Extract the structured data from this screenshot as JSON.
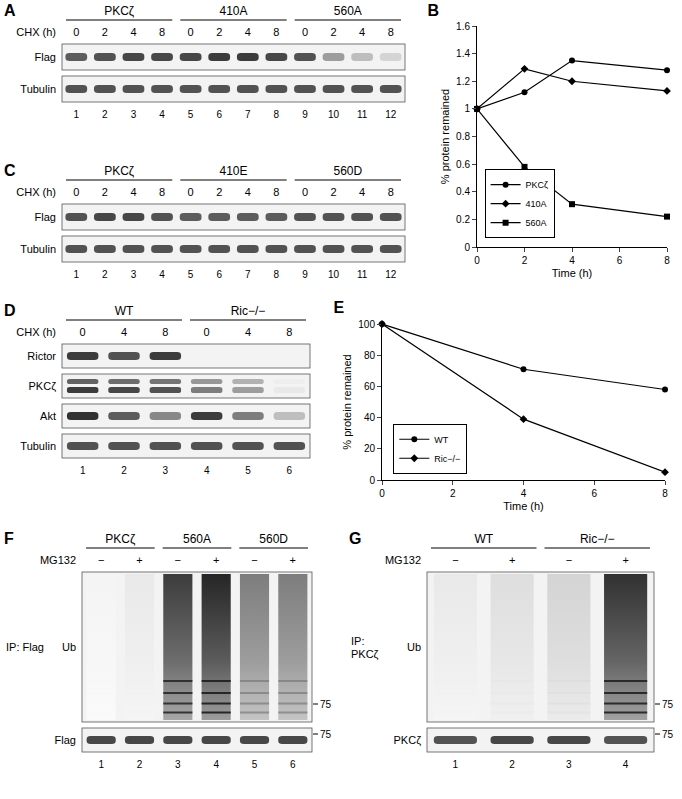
{
  "chart_data": [
    {
      "type": "line",
      "title": "B",
      "x": [
        0,
        2,
        4,
        8
      ],
      "series": [
        {
          "name": "PKCζ",
          "values": [
            1,
            1.12,
            1.35,
            1.28
          ],
          "marker": "circle"
        },
        {
          "name": "410A",
          "values": [
            1,
            1.29,
            1.2,
            1.13
          ],
          "marker": "diamond"
        },
        {
          "name": "560A",
          "values": [
            1,
            0.58,
            0.31,
            0.22
          ],
          "marker": "square"
        }
      ],
      "color": "#000000",
      "line_style": "solid",
      "xlabel": "Time (h)",
      "ylabel": "% protein remained",
      "xlim": [
        0,
        8
      ],
      "ylim": [
        0,
        1.6
      ],
      "xticks": [
        0,
        2,
        4,
        6,
        8
      ],
      "yticks": [
        0,
        0.2,
        0.4,
        0.6,
        0.8,
        1,
        1.2,
        1.4,
        1.6
      ],
      "legend": "lower left",
      "grid": false
    },
    {
      "type": "line",
      "title": "E",
      "x": [
        0,
        4,
        8
      ],
      "series": [
        {
          "name": "WT",
          "values": [
            100,
            71,
            58
          ],
          "marker": "circle"
        },
        {
          "name": "Ric−/−",
          "values": [
            100,
            39,
            5
          ],
          "marker": "diamond"
        }
      ],
      "color": "#000000",
      "line_style": "solid",
      "xlabel": "Time (h)",
      "ylabel": "% protein remained",
      "xlim": [
        0,
        8
      ],
      "ylim": [
        0,
        100
      ],
      "xticks": [
        0,
        2,
        4,
        6,
        8
      ],
      "yticks": [
        0,
        20,
        40,
        60,
        80,
        100
      ],
      "legend": "lower left",
      "grid": false
    }
  ],
  "blots": [
    {
      "letter": "A",
      "groups": [
        "PKCζ",
        "410A",
        "560A"
      ],
      "condition_label": "CHX (h)",
      "conditions": [
        0,
        2,
        4,
        8,
        0,
        2,
        4,
        8,
        0,
        2,
        4,
        8
      ],
      "rows": [
        {
          "label": "Flag",
          "style": "band",
          "intensity": [
            0.75,
            0.8,
            0.85,
            0.85,
            0.85,
            0.9,
            0.9,
            0.85,
            0.8,
            0.45,
            0.3,
            0.2
          ]
        },
        {
          "label": "Tubulin",
          "style": "band",
          "intensity": [
            0.8,
            0.8,
            0.8,
            0.8,
            0.8,
            0.8,
            0.8,
            0.8,
            0.8,
            0.8,
            0.8,
            0.8
          ]
        }
      ],
      "lane_numbers": [
        1,
        2,
        3,
        4,
        5,
        6,
        7,
        8,
        9,
        10,
        11,
        12
      ]
    },
    {
      "letter": "C",
      "groups": [
        "PKCζ",
        "410E",
        "560D"
      ],
      "condition_label": "CHX (h)",
      "conditions": [
        0,
        2,
        4,
        8,
        0,
        2,
        4,
        8,
        0,
        2,
        4,
        8
      ],
      "rows": [
        {
          "label": "Flag",
          "style": "band",
          "intensity": [
            0.8,
            0.85,
            0.85,
            0.8,
            0.75,
            0.75,
            0.75,
            0.75,
            0.8,
            0.8,
            0.8,
            0.8
          ]
        },
        {
          "label": "Tubulin",
          "style": "band",
          "intensity": [
            0.8,
            0.8,
            0.8,
            0.8,
            0.8,
            0.8,
            0.8,
            0.8,
            0.8,
            0.8,
            0.8,
            0.8
          ]
        }
      ],
      "lane_numbers": [
        1,
        2,
        3,
        4,
        5,
        6,
        7,
        8,
        9,
        10,
        11,
        12
      ]
    },
    {
      "letter": "D",
      "groups": [
        "WT",
        "Ric−/−"
      ],
      "condition_label": "CHX (h)",
      "conditions": [
        0,
        4,
        8,
        0,
        4,
        8
      ],
      "rows": [
        {
          "label": "Rictor",
          "style": "band",
          "intensity": [
            0.9,
            0.8,
            0.9,
            0,
            0,
            0
          ]
        },
        {
          "label": "PKCζ",
          "style": "doublet",
          "intensity": [
            0.9,
            0.85,
            0.8,
            0.6,
            0.45,
            0.1
          ]
        },
        {
          "label": "Akt",
          "style": "band",
          "intensity": [
            0.95,
            0.75,
            0.55,
            0.9,
            0.6,
            0.3
          ]
        },
        {
          "label": "Tubulin",
          "style": "band",
          "intensity": [
            0.8,
            0.8,
            0.8,
            0.8,
            0.8,
            0.8
          ]
        }
      ],
      "lane_numbers": [
        1,
        2,
        3,
        4,
        5,
        6
      ]
    },
    {
      "letter": "F",
      "groups": [
        "PKCζ",
        "560A",
        "560D"
      ],
      "condition_label": "MG132",
      "conditions": [
        "−",
        "+",
        "−",
        "+",
        "−",
        "+"
      ],
      "side_label": [
        "IP: Flag"
      ],
      "rows": [
        {
          "label": "Ub",
          "style": "smear",
          "intensity": [
            0.05,
            0.1,
            0.9,
            1,
            0.6,
            0.6
          ],
          "marker_label": "75"
        },
        {
          "label": "Flag",
          "style": "band",
          "intensity": [
            0.85,
            0.85,
            0.85,
            0.85,
            0.85,
            0.85
          ],
          "marker_label": "75"
        }
      ],
      "lane_numbers": [
        1,
        2,
        3,
        4,
        5,
        6
      ]
    },
    {
      "letter": "G",
      "groups": [
        "WT",
        "Ric−/−"
      ],
      "condition_label": "MG132",
      "conditions": [
        "−",
        "+",
        "−",
        "+"
      ],
      "side_label": [
        "IP:",
        "PKCζ"
      ],
      "rows": [
        {
          "label": "Ub",
          "style": "smear",
          "intensity": [
            0.1,
            0.15,
            0.2,
            0.95
          ],
          "marker_label": "75"
        },
        {
          "label": "PKCζ",
          "style": "band",
          "intensity": [
            0.8,
            0.85,
            0.85,
            0.8
          ],
          "marker_label": "75"
        }
      ],
      "lane_numbers": [
        1,
        2,
        3,
        4
      ]
    }
  ]
}
